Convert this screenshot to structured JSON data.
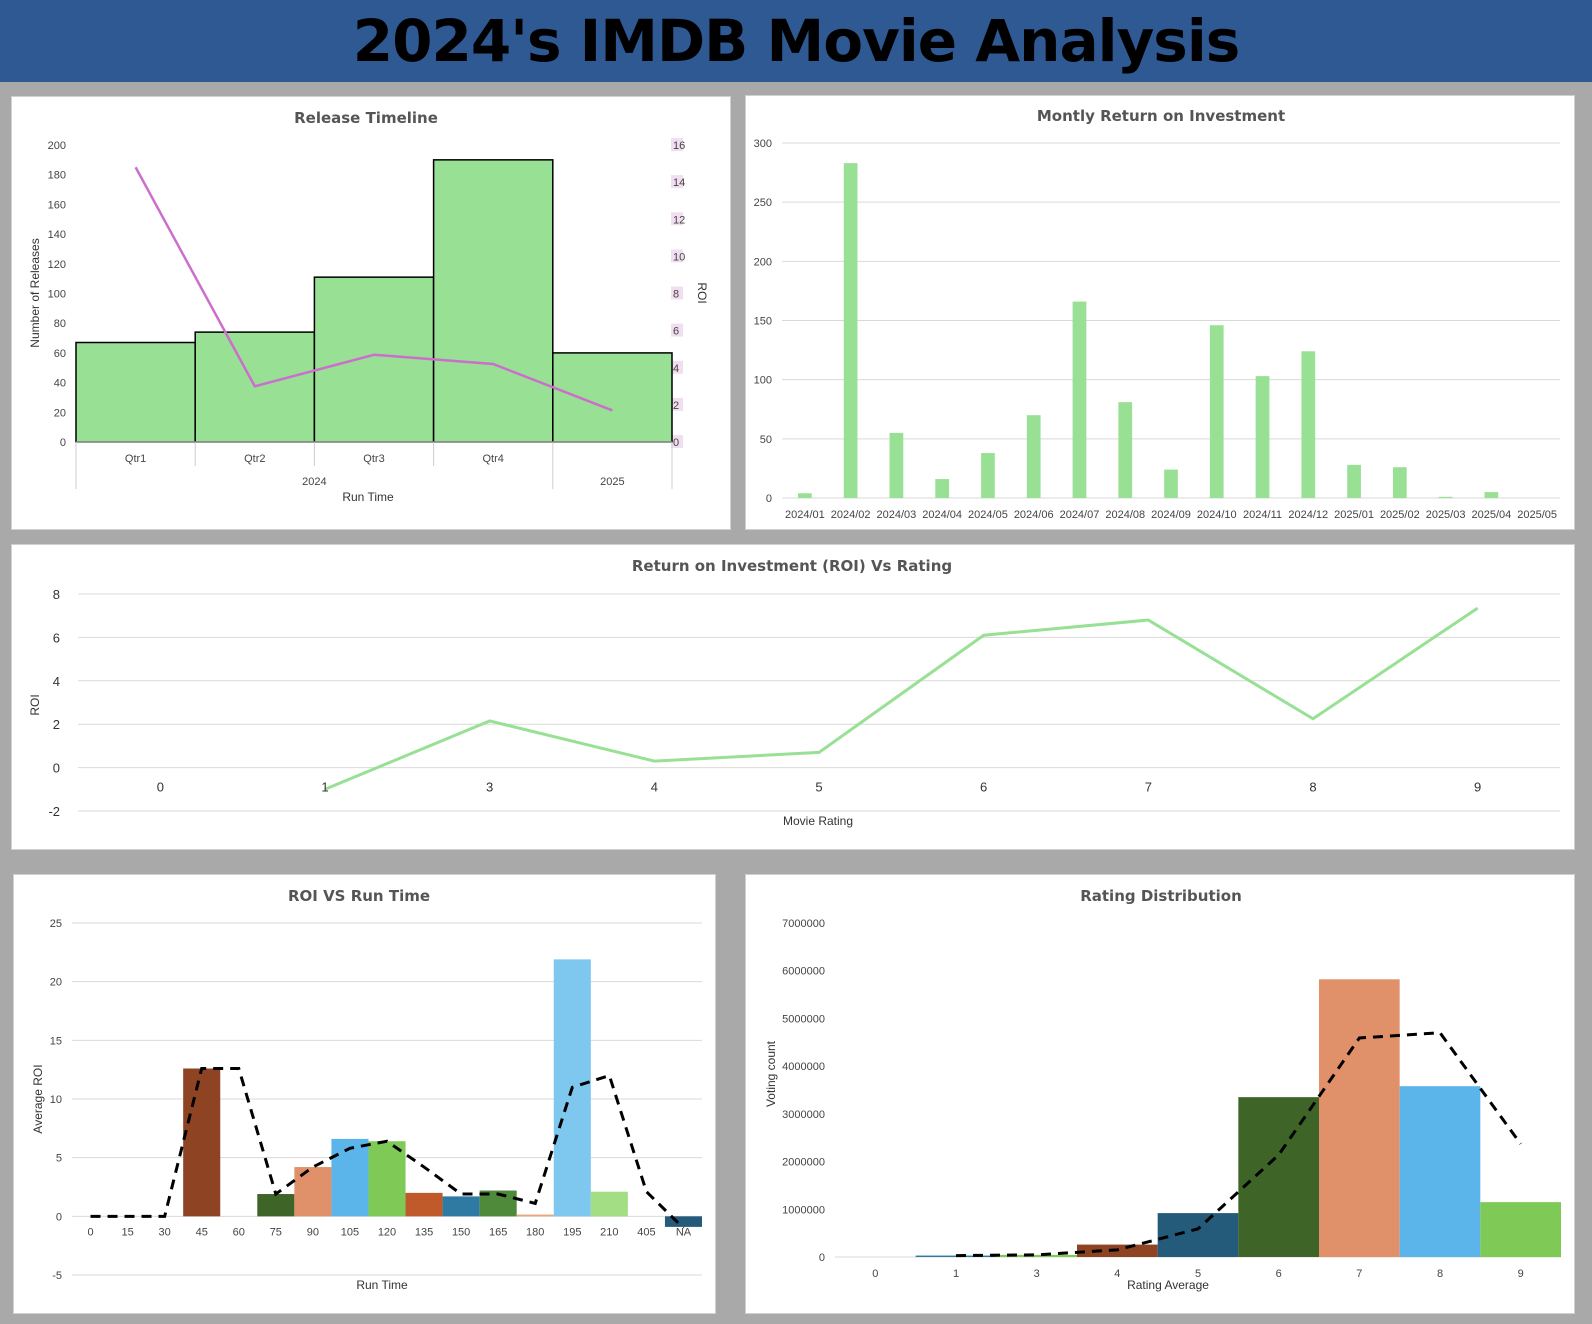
{
  "dashboard": {
    "title": "2024's IMDB Movie Analysis"
  },
  "chart_data": [
    {
      "id": "release-timeline",
      "type": "bar",
      "title": "Release Timeline",
      "xlabel": "Run Time",
      "ylabel": "Number of Releases",
      "y2label": "ROI",
      "ylim": [
        0,
        200
      ],
      "y2lim": [
        0,
        16
      ],
      "yticks": [
        0,
        20,
        40,
        60,
        80,
        100,
        120,
        140,
        160,
        180,
        200
      ],
      "y2ticks": [
        0,
        2,
        4,
        6,
        8,
        10,
        12,
        14,
        16
      ],
      "categories": [
        "Qtr1",
        "Qtr2",
        "Qtr3",
        "Qtr4",
        ""
      ],
      "groups": [
        {
          "label": "2024",
          "span": 4
        },
        {
          "label": "2025",
          "span": 1
        }
      ],
      "series": [
        {
          "type": "bar",
          "axis": "left",
          "values": [
            67,
            74,
            111,
            190,
            60
          ]
        },
        {
          "type": "line",
          "axis": "right",
          "values": [
            14.8,
            3.0,
            4.7,
            4.2,
            1.7
          ]
        }
      ],
      "colors": {
        "bar": "#98e094",
        "line": "#cc6ecc"
      }
    },
    {
      "id": "monthly-roi",
      "type": "bar",
      "title": "Montly Return on Investment",
      "ylim": [
        0,
        300
      ],
      "yticks": [
        0,
        50,
        100,
        150,
        200,
        250,
        300
      ],
      "categories": [
        "2024/01",
        "2024/02",
        "2024/03",
        "2024/04",
        "2024/05",
        "2024/06",
        "2024/07",
        "2024/08",
        "2024/09",
        "2024/10",
        "2024/11",
        "2024/12",
        "2025/01",
        "2025/02",
        "2025/03",
        "2025/04",
        "2025/05"
      ],
      "values": [
        4,
        283,
        55,
        16,
        38,
        70,
        166,
        81,
        24,
        146,
        103,
        124,
        28,
        26,
        1,
        5,
        0
      ],
      "colors": {
        "bar": "#98e094"
      }
    },
    {
      "id": "roi-vs-rating",
      "type": "line",
      "title": "Return on Investment (ROI) Vs Rating",
      "xlabel": "Movie Rating",
      "ylabel": "ROI",
      "ylim": [
        -2,
        8
      ],
      "yticks": [
        -2,
        0,
        2,
        4,
        6,
        8
      ],
      "categories": [
        "0",
        "1",
        "3",
        "4",
        "5",
        "6",
        "7",
        "8",
        "9"
      ],
      "values": [
        null,
        -1.0,
        2.15,
        0.3,
        0.7,
        6.1,
        6.8,
        2.25,
        7.35
      ],
      "colors": {
        "line": "#98e094"
      }
    },
    {
      "id": "roi-vs-runtime",
      "type": "bar",
      "title": "ROI  VS Run Time",
      "xlabel": "Run Time",
      "ylabel": "Average ROI",
      "ylim": [
        -5,
        25
      ],
      "yticks": [
        -5,
        0,
        5,
        10,
        15,
        20,
        25
      ],
      "categories": [
        "0",
        "15",
        "30",
        "45",
        "60",
        "75",
        "90",
        "105",
        "120",
        "135",
        "150",
        "165",
        "180",
        "195",
        "210",
        "405",
        "NA"
      ],
      "values": [
        0,
        0,
        0,
        12.6,
        0,
        1.9,
        4.2,
        6.6,
        6.4,
        2.0,
        1.7,
        2.2,
        0.15,
        21.9,
        2.1,
        0,
        -0.9
      ],
      "trendline": [
        0,
        0,
        0,
        12.6,
        12.6,
        1.9,
        4.2,
        5.8,
        6.4,
        4.2,
        1.9,
        1.9,
        1.1,
        11.0,
        12.0,
        2.1,
        -1.0
      ],
      "colors": {
        "bars": [
          "#bbbbbb",
          "#bbbbbb",
          "#bbbbbb",
          "#8e4422",
          "#bbbbbb",
          "#3e6427",
          "#e0916a",
          "#5bb5ea",
          "#7fc956",
          "#c05a2a",
          "#2f7aa3",
          "#4f8a3a",
          "#eaa57a",
          "#7ec7ef",
          "#a3de85",
          "#bbbbbb",
          "#245a7a"
        ],
        "trend": "#000000"
      }
    },
    {
      "id": "rating-distribution",
      "type": "bar",
      "title": "Rating Distribution",
      "xlabel": "Rating Average",
      "ylabel": "Voting count",
      "ylim": [
        0,
        7000000
      ],
      "yticks": [
        0,
        1000000,
        2000000,
        3000000,
        4000000,
        5000000,
        6000000,
        7000000
      ],
      "categories": [
        "0",
        "1",
        "3",
        "4",
        "5",
        "6",
        "7",
        "8",
        "9"
      ],
      "values": [
        0,
        30000,
        45000,
        260000,
        920000,
        3350000,
        5820000,
        3580000,
        1150000
      ],
      "trendline": [
        null,
        30000,
        45000,
        150000,
        590000,
        2140000,
        4590000,
        4700000,
        2370000
      ],
      "colors": {
        "bars": [
          "#bbbbbb",
          "#2f7aa3",
          "#7fc956",
          "#8e4422",
          "#245a7a",
          "#3e6427",
          "#e0916a",
          "#5bb5ea",
          "#7fc956"
        ],
        "trend": "#000000"
      }
    }
  ]
}
